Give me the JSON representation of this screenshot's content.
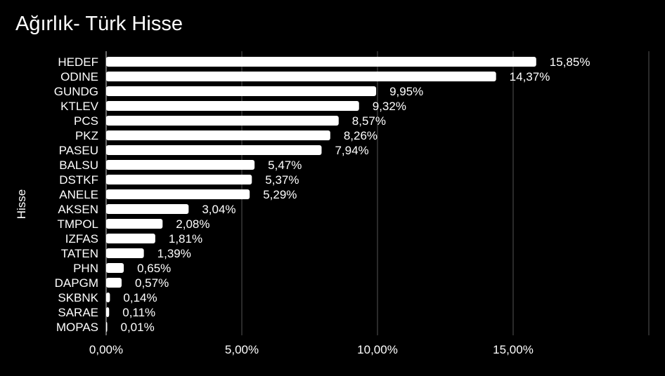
{
  "chart_data": {
    "type": "bar",
    "orientation": "horizontal",
    "title": "Ağırlık- Türk Hisse",
    "ylabel": "Hisse",
    "xlabel": "",
    "categories": [
      "HEDEF",
      "ODINE",
      "GUNDG",
      "KTLEV",
      "PCS",
      "PKZ",
      "PASEU",
      "BALSU",
      "DSTKF",
      "ANELE",
      "AKSEN",
      "TMPOL",
      "IZFAS",
      "TATEN",
      "PHN",
      "DAPGM",
      "SKBNK",
      "SARAE",
      "MOPAS"
    ],
    "values": [
      15.85,
      14.37,
      9.95,
      9.32,
      8.57,
      8.26,
      7.94,
      5.47,
      5.37,
      5.29,
      3.04,
      2.08,
      1.81,
      1.39,
      0.65,
      0.57,
      0.14,
      0.11,
      0.01
    ],
    "value_labels": [
      "15,85%",
      "14,37%",
      "9,95%",
      "9,32%",
      "8,57%",
      "8,26%",
      "7,94%",
      "5,47%",
      "5,37%",
      "5,29%",
      "3,04%",
      "2,08%",
      "1,81%",
      "1,39%",
      "0,65%",
      "0,57%",
      "0,14%",
      "0,11%",
      "0,01%"
    ],
    "x_ticks": [
      0,
      5,
      10,
      15,
      20
    ],
    "x_tick_labels": [
      "0,00%",
      "5,00%",
      "10,00%",
      "15,00%",
      ""
    ],
    "xlim": [
      0,
      20
    ],
    "grid": true,
    "legend": "none",
    "colors": {
      "background": "#000000",
      "bar": "#ffffff",
      "text": "#ffffff",
      "grid": "#555555"
    }
  }
}
